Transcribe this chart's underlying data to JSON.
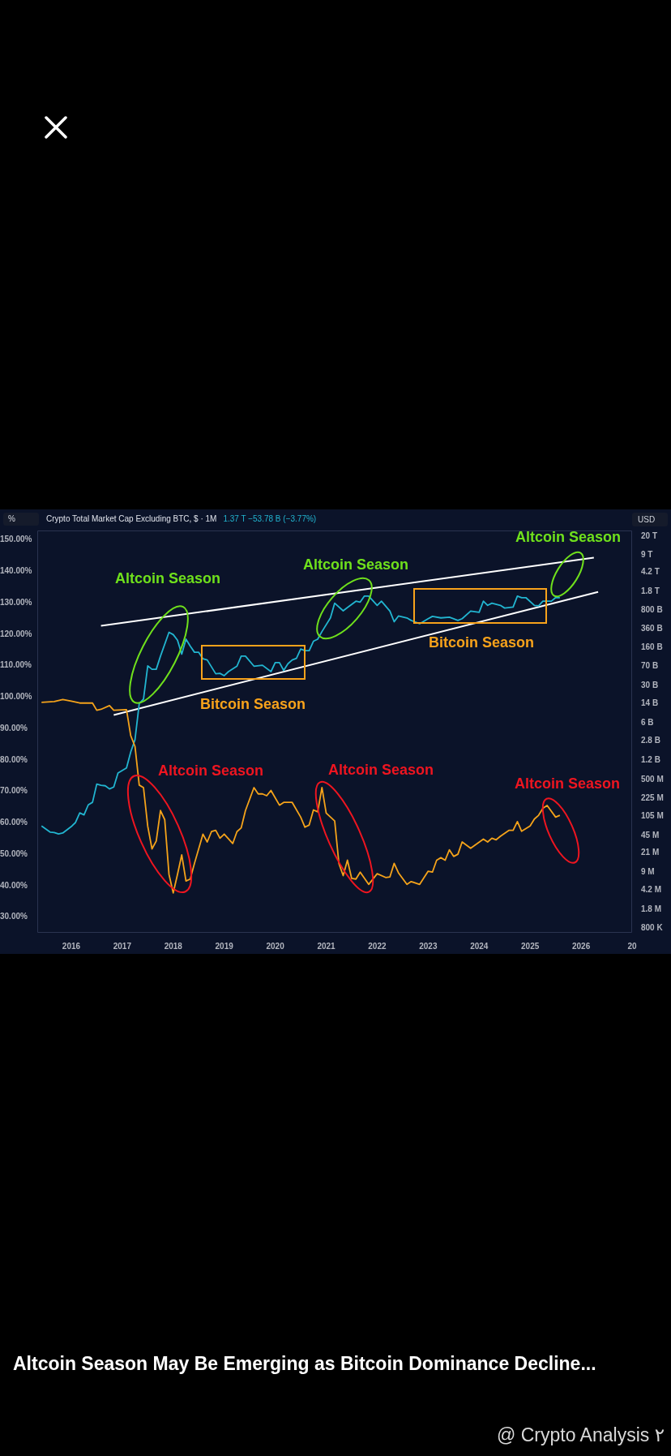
{
  "chart_data": {
    "type": "line",
    "title": "Crypto Total Market Cap Excluding BTC, $ · 1M",
    "subtitle": "1.37 T −53.78 B (−3.77%)",
    "ylabel": "%",
    "y2label": "USD",
    "xlim": [
      "2015-05",
      "2027-01"
    ],
    "xticks": [
      {
        "value": "2016",
        "label": "2016"
      },
      {
        "value": "2017",
        "label": "2017"
      },
      {
        "value": "2018",
        "label": "2018"
      },
      {
        "value": "2019",
        "label": "2019"
      },
      {
        "value": "2020",
        "label": "2020"
      },
      {
        "value": "2021",
        "label": "2021"
      },
      {
        "value": "2022",
        "label": "2022"
      },
      {
        "value": "2023",
        "label": "2023"
      },
      {
        "value": "2024",
        "label": "2024"
      },
      {
        "value": "2025",
        "label": "2025"
      },
      {
        "value": "2026",
        "label": "2026"
      },
      {
        "value": "2027",
        "label": "20"
      }
    ],
    "ylim": [
      25,
      153
    ],
    "yticks": [
      {
        "value": 30,
        "label": "30.00%"
      },
      {
        "value": 40,
        "label": "40.00%"
      },
      {
        "value": 50,
        "label": "50.00%"
      },
      {
        "value": 60,
        "label": "60.00%"
      },
      {
        "value": 70,
        "label": "70.00%"
      },
      {
        "value": 80,
        "label": "80.00%"
      },
      {
        "value": 90,
        "label": "90.00%"
      },
      {
        "value": 100,
        "label": "100.00%"
      },
      {
        "value": 110,
        "label": "110.00%"
      },
      {
        "value": 120,
        "label": "120.00%"
      },
      {
        "value": 130,
        "label": "130.00%"
      },
      {
        "value": 140,
        "label": "140.00%"
      },
      {
        "value": 150,
        "label": "150.00%"
      }
    ],
    "log": "y2",
    "y2lim": [
      650000,
      26000000000000
    ],
    "y2ticks": [
      {
        "value": 800000,
        "label": "800 K"
      },
      {
        "value": 1800000,
        "label": "1.8 M"
      },
      {
        "value": 4200000,
        "label": "4.2 M"
      },
      {
        "value": 9000000,
        "label": "9 M"
      },
      {
        "value": 21000000,
        "label": "21 M"
      },
      {
        "value": 45000000,
        "label": "45 M"
      },
      {
        "value": 105000000,
        "label": "105 M"
      },
      {
        "value": 225000000,
        "label": "225 M"
      },
      {
        "value": 500000000,
        "label": "500 M"
      },
      {
        "value": 1200000000,
        "label": "1.2 B"
      },
      {
        "value": 2800000000,
        "label": "2.8 B"
      },
      {
        "value": 6000000000,
        "label": "6 B"
      },
      {
        "value": 14000000000,
        "label": "14 B"
      },
      {
        "value": 30000000000,
        "label": "30 B"
      },
      {
        "value": 70000000000,
        "label": "70 B"
      },
      {
        "value": 160000000000,
        "label": "160 B"
      },
      {
        "value": 360000000000,
        "label": "360 B"
      },
      {
        "value": 800000000000,
        "label": "800 B"
      },
      {
        "value": 1800000000000,
        "label": "1.8 T"
      },
      {
        "value": 4200000000000,
        "label": "4.2 T"
      },
      {
        "value": 9000000000000,
        "label": "9 T"
      },
      {
        "value": 20000000000000,
        "label": "20 T"
      }
    ],
    "series": [
      {
        "type": "line",
        "color": "#f5a31a",
        "x": [
          "2015-06",
          "2015-09",
          "2015-11",
          "2016-01",
          "2016-03",
          "2016-06",
          "2016-07",
          "2016-08",
          "2016-10",
          "2016-11",
          "2017-02",
          "2017-03",
          "2017-04",
          "2017-05",
          "2017-06",
          "2017-07",
          "2017-08",
          "2017-09",
          "2017-10",
          "2017-11",
          "2017-12",
          "2018-01",
          "2018-02",
          "2018-03",
          "2018-04",
          "2018-05",
          "2018-06",
          "2018-08",
          "2018-09",
          "2018-10",
          "2018-11",
          "2018-12",
          "2019-01",
          "2019-03",
          "2019-04",
          "2019-05",
          "2019-06",
          "2019-08",
          "2019-09",
          "2019-10",
          "2019-11",
          "2019-12",
          "2020-02",
          "2020-03",
          "2020-05",
          "2020-07",
          "2020-08",
          "2020-09",
          "2020-10",
          "2020-11",
          "2020-12",
          "2021-01",
          "2021-03",
          "2021-04",
          "2021-05",
          "2021-06",
          "2021-07",
          "2021-08",
          "2021-09",
          "2021-11",
          "2022-01",
          "2022-03",
          "2022-04",
          "2022-05",
          "2022-06",
          "2022-08",
          "2022-09",
          "2022-11",
          "2023-01",
          "2023-02",
          "2023-03",
          "2023-04",
          "2023-05",
          "2023-06",
          "2023-07",
          "2023-08",
          "2023-09",
          "2023-11",
          "2024-02",
          "2024-03",
          "2024-04",
          "2024-05",
          "2024-06",
          "2024-08",
          "2024-09",
          "2024-10",
          "2024-11",
          "2025-01",
          "2025-02",
          "2025-03",
          "2025-04",
          "2025-05",
          "2025-07",
          "2025-08"
        ],
        "values": [
          98.3,
          98.6,
          99.2,
          98.7,
          98.1,
          98.1,
          95.8,
          96.1,
          97.3,
          95.8,
          96.0,
          87.7,
          84.3,
          72.0,
          71.2,
          58.9,
          51.7,
          54.2,
          63.9,
          61.0,
          43.6,
          37.7,
          43.6,
          49.8,
          41.5,
          42.1,
          47.1,
          56.4,
          53.9,
          57.2,
          57.6,
          55.1,
          56.4,
          53.4,
          57.2,
          58.4,
          63.9,
          71.2,
          69.2,
          69.2,
          68.6,
          70.3,
          65.6,
          66.5,
          66.5,
          61.8,
          58.6,
          59.3,
          64.1,
          63.5,
          71.2,
          63.1,
          60.6,
          47.0,
          43.2,
          48.1,
          42.3,
          42.1,
          44.3,
          40.4,
          43.8,
          42.6,
          42.8,
          47.1,
          44.1,
          40.4,
          41.3,
          40.4,
          44.6,
          44.3,
          48.1,
          48.9,
          48.1,
          51.4,
          49.3,
          50.0,
          53.9,
          51.9,
          54.8,
          53.9,
          55.1,
          54.6,
          55.7,
          57.6,
          57.6,
          60.4,
          57.3,
          59.0,
          61.2,
          62.4,
          64.6,
          65.5,
          61.8,
          62.4
        ]
      },
      {
        "type": "line",
        "color": "#22b5d0",
        "axis": "y2",
        "x": [
          "2015-06",
          "2015-08",
          "2015-09",
          "2015-10",
          "2015-11",
          "2016-01",
          "2016-02",
          "2016-03",
          "2016-04",
          "2016-05",
          "2016-06",
          "2016-07",
          "2016-08",
          "2016-09",
          "2016-10",
          "2016-11",
          "2016-12",
          "2017-02",
          "2017-03",
          "2017-04",
          "2017-05",
          "2017-06",
          "2017-07",
          "2017-08",
          "2017-09",
          "2017-10",
          "2017-12",
          "2018-01",
          "2018-02",
          "2018-03",
          "2018-04",
          "2018-05",
          "2018-06",
          "2018-07",
          "2018-08",
          "2018-09",
          "2018-11",
          "2018-12",
          "2019-01",
          "2019-02",
          "2019-04",
          "2019-05",
          "2019-06",
          "2019-08",
          "2019-10",
          "2019-12",
          "2020-01",
          "2020-02",
          "2020-03",
          "2020-04",
          "2020-05",
          "2020-06",
          "2020-07",
          "2020-08",
          "2020-09",
          "2020-10",
          "2020-11",
          "2020-12",
          "2021-02",
          "2021-03",
          "2021-05",
          "2021-06",
          "2021-08",
          "2021-09",
          "2021-10",
          "2021-11",
          "2022-01",
          "2022-02",
          "2022-04",
          "2022-05",
          "2022-06",
          "2022-08",
          "2022-09",
          "2022-11",
          "2023-01",
          "2023-02",
          "2023-04",
          "2023-06",
          "2023-08",
          "2023-09",
          "2023-11",
          "2024-01",
          "2024-02",
          "2024-03",
          "2024-04",
          "2024-06",
          "2024-07",
          "2024-09",
          "2024-10",
          "2024-11",
          "2024-12",
          "2025-02",
          "2025-03",
          "2025-04",
          "2025-06",
          "2025-07",
          "2025-08"
        ],
        "values": [
          68000000,
          52000000,
          51000000,
          48000000,
          50000000,
          66000000,
          79000000,
          120000000,
          110000000,
          170000000,
          190000000,
          420000000,
          400000000,
          390000000,
          340000000,
          370000000,
          680000000,
          850000000,
          1700000000,
          2900000000,
          14000000000,
          17000000000,
          72000000000,
          62000000000,
          62000000000,
          110000000000,
          310000000000,
          280000000000,
          220000000000,
          120000000000,
          230000000000,
          170000000000,
          130000000000,
          130000000000,
          98000000000,
          93000000000,
          51000000000,
          52000000000,
          47000000000,
          56000000000,
          71000000000,
          110000000000,
          110000000000,
          71000000000,
          74000000000,
          56000000000,
          83000000000,
          83000000000,
          59000000000,
          79000000000,
          93000000000,
          100000000000,
          150000000000,
          140000000000,
          140000000000,
          210000000000,
          230000000000,
          320000000000,
          580000000000,
          1100000000000,
          790000000000,
          910000000000,
          1200000000000,
          1150000000000,
          1500000000000,
          1500000000000,
          1000000000000,
          1200000000000,
          780000000000,
          490000000000,
          630000000000,
          580000000000,
          520000000000,
          450000000000,
          560000000000,
          620000000000,
          580000000000,
          600000000000,
          520000000000,
          560000000000,
          780000000000,
          740000000000,
          1200000000000,
          1000000000000,
          1100000000000,
          1000000000000,
          890000000000,
          930000000000,
          1500000000000,
          1400000000000,
          1400000000000,
          1000000000000,
          980000000000,
          1200000000000,
          1200000000000,
          1400000000000,
          1400000000000
        ]
      },
      {
        "type": "line",
        "color": "#ffffff",
        "axis": "y2",
        "x": [
          "2016-08",
          "2026-04"
        ],
        "values": [
          411000000000,
          8000000000000
        ]
      },
      {
        "type": "line",
        "color": "#ffffff",
        "axis": "y2",
        "x": [
          "2016-11",
          "2026-05"
        ],
        "values": [
          8500000000,
          1800000000000
        ]
      }
    ],
    "annotations": [
      "Altcoin Season",
      "Altcoin Season",
      "Altcoin Season",
      "Bitcoin Season",
      "Bitcoin Season",
      "Altcoin Season",
      "Altcoin Season",
      "Altcoin Season",
      "Altcoin Season May Be Emerging as Bitcoin Dominance Decline...",
      "@ Crypto Analysis ٢"
    ]
  }
}
